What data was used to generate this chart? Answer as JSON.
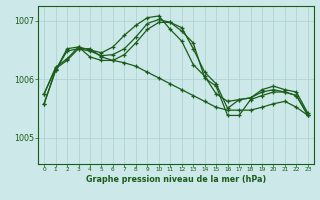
{
  "background_color": "#cce8e8",
  "grid_color": "#aacfcf",
  "line_color": "#1a5c1a",
  "xlabel": "Graphe pression niveau de la mer (hPa)",
  "xlim": [
    -0.5,
    23.5
  ],
  "ylim": [
    1004.55,
    1007.25
  ],
  "yticks": [
    1005,
    1006,
    1007
  ],
  "xticks": [
    0,
    1,
    2,
    3,
    4,
    5,
    6,
    7,
    8,
    9,
    10,
    11,
    12,
    13,
    14,
    15,
    16,
    17,
    18,
    19,
    20,
    21,
    22,
    23
  ],
  "series": [
    {
      "points": [
        [
          0,
          1005.75
        ],
        [
          1,
          1006.2
        ],
        [
          2,
          1006.35
        ],
        [
          3,
          1006.55
        ],
        [
          4,
          1006.5
        ],
        [
          5,
          1006.45
        ],
        [
          6,
          1006.55
        ],
        [
          7,
          1006.75
        ],
        [
          8,
          1006.92
        ],
        [
          9,
          1007.05
        ],
        [
          10,
          1007.08
        ],
        [
          11,
          1006.85
        ],
        [
          12,
          1006.65
        ],
        [
          13,
          1006.25
        ],
        [
          14,
          1006.05
        ],
        [
          15,
          1005.75
        ],
        [
          16,
          1005.62
        ],
        [
          17,
          1005.65
        ],
        [
          18,
          1005.68
        ],
        [
          19,
          1005.82
        ],
        [
          20,
          1005.88
        ],
        [
          21,
          1005.82
        ],
        [
          22,
          1005.78
        ],
        [
          23,
          1005.42
        ]
      ]
    },
    {
      "points": [
        [
          0,
          1005.75
        ],
        [
          1,
          1006.18
        ],
        [
          2,
          1006.32
        ],
        [
          3,
          1006.52
        ],
        [
          4,
          1006.48
        ],
        [
          5,
          1006.4
        ],
        [
          6,
          1006.42
        ],
        [
          7,
          1006.52
        ],
        [
          8,
          1006.72
        ],
        [
          9,
          1006.95
        ],
        [
          10,
          1007.02
        ],
        [
          11,
          1006.97
        ],
        [
          12,
          1006.88
        ],
        [
          13,
          1006.52
        ],
        [
          14,
          1006.12
        ],
        [
          15,
          1005.92
        ],
        [
          16,
          1005.5
        ],
        [
          17,
          1005.65
        ],
        [
          18,
          1005.68
        ],
        [
          19,
          1005.78
        ],
        [
          20,
          1005.82
        ],
        [
          21,
          1005.78
        ],
        [
          22,
          1005.72
        ],
        [
          23,
          1005.38
        ]
      ]
    },
    {
      "points": [
        [
          0,
          1005.58
        ],
        [
          1,
          1006.15
        ],
        [
          2,
          1006.52
        ],
        [
          3,
          1006.55
        ],
        [
          4,
          1006.38
        ],
        [
          5,
          1006.32
        ],
        [
          6,
          1006.32
        ],
        [
          7,
          1006.42
        ],
        [
          8,
          1006.62
        ],
        [
          9,
          1006.85
        ],
        [
          10,
          1006.97
        ],
        [
          11,
          1006.97
        ],
        [
          12,
          1006.82
        ],
        [
          13,
          1006.62
        ],
        [
          14,
          1006.02
        ],
        [
          15,
          1005.88
        ],
        [
          16,
          1005.38
        ],
        [
          17,
          1005.38
        ],
        [
          18,
          1005.65
        ],
        [
          19,
          1005.72
        ],
        [
          20,
          1005.78
        ],
        [
          21,
          1005.78
        ],
        [
          22,
          1005.72
        ],
        [
          23,
          1005.38
        ]
      ]
    },
    {
      "points": [
        [
          0,
          1005.58
        ],
        [
          1,
          1006.15
        ],
        [
          2,
          1006.48
        ],
        [
          3,
          1006.52
        ],
        [
          4,
          1006.52
        ],
        [
          5,
          1006.38
        ],
        [
          6,
          1006.32
        ],
        [
          7,
          1006.28
        ],
        [
          8,
          1006.22
        ],
        [
          9,
          1006.12
        ],
        [
          10,
          1006.02
        ],
        [
          11,
          1005.92
        ],
        [
          12,
          1005.82
        ],
        [
          13,
          1005.72
        ],
        [
          14,
          1005.62
        ],
        [
          15,
          1005.52
        ],
        [
          16,
          1005.47
        ],
        [
          17,
          1005.47
        ],
        [
          18,
          1005.47
        ],
        [
          19,
          1005.52
        ],
        [
          20,
          1005.58
        ],
        [
          21,
          1005.62
        ],
        [
          22,
          1005.52
        ],
        [
          23,
          1005.38
        ]
      ]
    }
  ]
}
